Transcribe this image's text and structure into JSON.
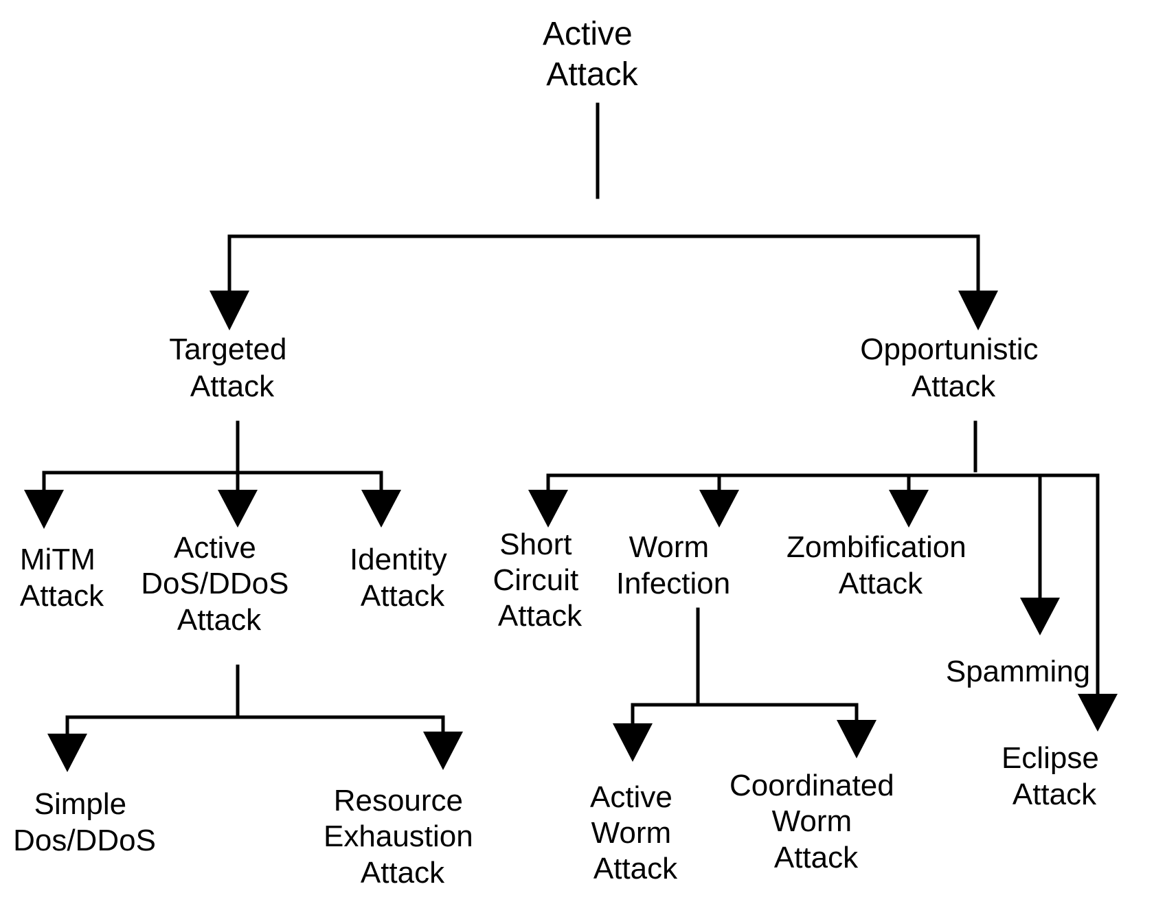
{
  "diagram": {
    "nodes": {
      "root": [
        "Active",
        "Attack"
      ],
      "targeted": [
        "Targeted",
        "Attack"
      ],
      "opportunistic": [
        "Opportunistic",
        "Attack"
      ],
      "mitm": [
        "MiTM",
        "Attack"
      ],
      "active_dos": [
        "Active",
        "DoS/DDoS",
        "Attack"
      ],
      "identity": [
        "Identity",
        "Attack"
      ],
      "short_circuit": [
        "Short",
        "Circuit",
        "Attack"
      ],
      "worm_infection": [
        "Worm",
        "Infection"
      ],
      "zombification": [
        "Zombification",
        "Attack"
      ],
      "spamming": [
        "Spamming"
      ],
      "eclipse": [
        "Eclipse",
        "Attack"
      ],
      "simple_dos": [
        "Simple",
        "Dos/DDoS"
      ],
      "resource_exhaustion": [
        "Resource",
        "Exhaustion",
        "Attack"
      ],
      "active_worm": [
        "Active",
        "Worm",
        "Attack"
      ],
      "coordinated_worm": [
        "Coordinated",
        "Worm",
        "Attack"
      ]
    }
  }
}
